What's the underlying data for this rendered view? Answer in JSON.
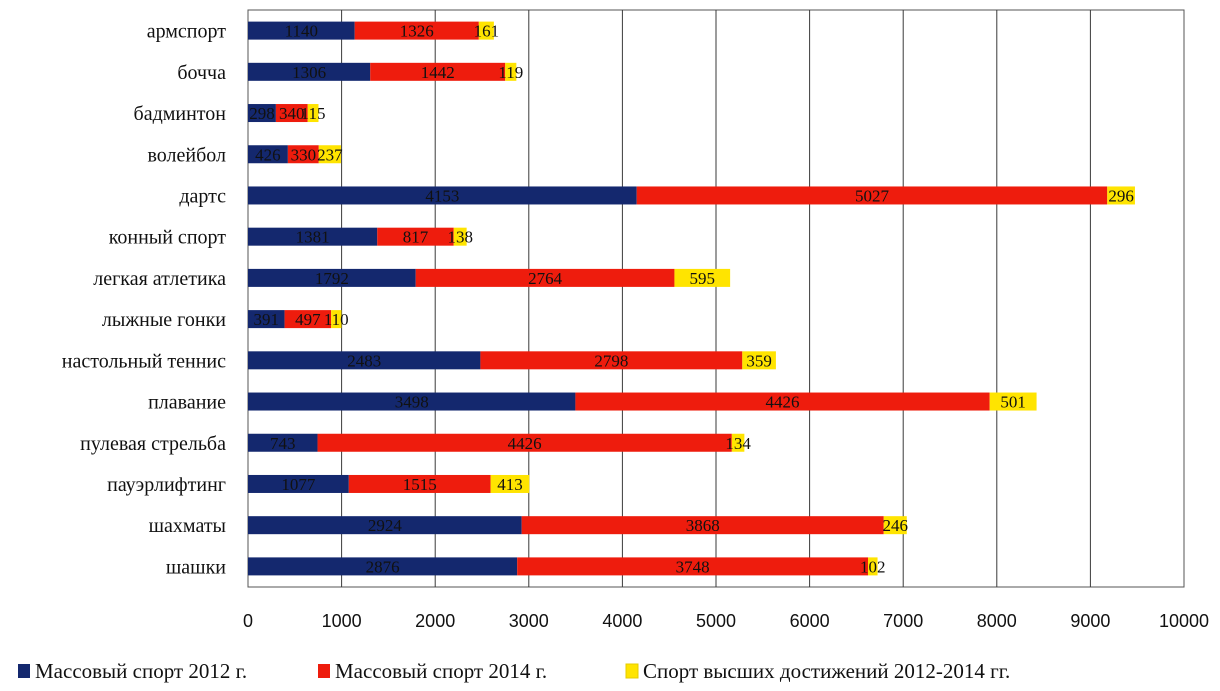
{
  "chart_data": {
    "type": "bar",
    "orientation": "horizontal",
    "stacked": true,
    "categories": [
      "армспорт",
      "бочча",
      "бадминтон",
      "волейбол",
      "дартс",
      "конный спорт",
      "легкая атлетика",
      "лыжные гонки",
      "настольный теннис",
      "плавание",
      "пулевая стрельба",
      "пауэрлифтинг",
      "шахматы",
      "шашки"
    ],
    "series": [
      {
        "name": "Массовый спорт 2012 г.",
        "color": "#14286e",
        "values": [
          1140,
          1306,
          298,
          426,
          4153,
          1381,
          1792,
          391,
          2483,
          3498,
          743,
          1077,
          2924,
          2876
        ]
      },
      {
        "name": "Массовый спорт 2014 г.",
        "color": "#ee1c0d",
        "values": [
          1326,
          1442,
          340,
          330,
          5027,
          817,
          2764,
          497,
          2798,
          4426,
          4426,
          1515,
          3868,
          3748
        ]
      },
      {
        "name": "Спорт высших достижений 2012-2014 гг.",
        "color": "#ffe400",
        "values": [
          161,
          119,
          115,
          237,
          296,
          138,
          595,
          110,
          359,
          501,
          134,
          413,
          246,
          102
        ]
      }
    ],
    "xlim": [
      0,
      10000
    ],
    "xticks": [
      "0",
      "1000",
      "2000",
      "3000",
      "4000",
      "5000",
      "6000",
      "7000",
      "8000",
      "9000",
      "10000"
    ],
    "grid": "vertical",
    "legend_position": "bottom",
    "title": "",
    "xlabel": "",
    "ylabel": ""
  }
}
